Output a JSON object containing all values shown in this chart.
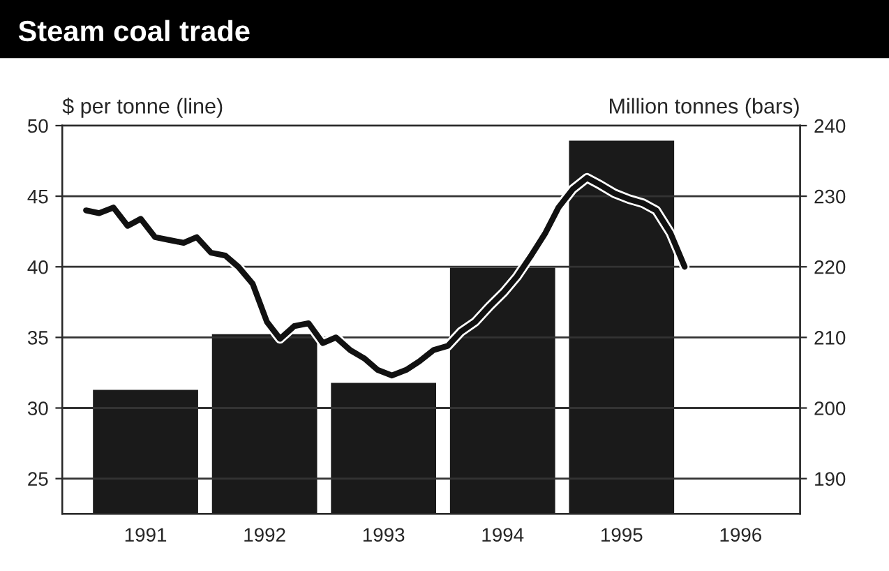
{
  "chart_data": {
    "type": "bar",
    "title": "Steam coal trade",
    "ylabel": "$ per tonne (line)",
    "y2label": "Million tonnes (bars)",
    "xlim": [
      1990.3,
      1996.5
    ],
    "xticks": [
      1991,
      1992,
      1993,
      1994,
      1995,
      1996
    ],
    "ylim": [
      22.5,
      50
    ],
    "yticks": [
      25,
      30,
      35,
      40,
      45,
      50
    ],
    "y2lim": [
      185,
      240
    ],
    "y2ticks": [
      190,
      200,
      210,
      220,
      230,
      240
    ],
    "grid": "y",
    "series": [
      {
        "axis": "y2",
        "color": "#1a1a1a",
        "x": [
          1991,
          1992,
          1993,
          1994,
          1995
        ],
        "values": [
          202.7,
          210.6,
          203.7,
          220,
          238
        ]
      },
      {
        "type": "line",
        "axis": "y",
        "color": "#111111",
        "line_style": "solid",
        "marker": "none",
        "x": [
          1990.5,
          1990.61,
          1990.73,
          1990.85,
          1990.96,
          1991.08,
          1991.2,
          1991.32,
          1991.43,
          1991.55,
          1991.67,
          1991.78,
          1991.9,
          1992.02,
          1992.13,
          1992.25,
          1992.37,
          1992.49,
          1992.6,
          1992.72,
          1992.84,
          1992.95,
          1993.07,
          1993.19,
          1993.3,
          1993.42,
          1993.54,
          1993.65,
          1993.77,
          1993.89,
          1994.01,
          1994.12,
          1994.24,
          1994.36,
          1994.47,
          1994.59,
          1994.71,
          1994.82,
          1994.94,
          1995.06,
          1995.18,
          1995.29,
          1995.41,
          1995.53
        ],
        "values": [
          44.0,
          43.8,
          44.2,
          42.9,
          43.4,
          42.1,
          41.9,
          41.7,
          42.1,
          41.0,
          40.8,
          40.0,
          38.8,
          36.1,
          34.9,
          35.8,
          36.0,
          34.6,
          35.0,
          34.1,
          33.5,
          32.7,
          32.3,
          32.7,
          33.3,
          34.1,
          34.4,
          35.4,
          36.1,
          37.2,
          38.2,
          39.3,
          40.8,
          42.4,
          44.2,
          45.5,
          46.3,
          45.8,
          45.2,
          44.8,
          44.5,
          44.0,
          42.4,
          40.0
        ]
      }
    ]
  }
}
